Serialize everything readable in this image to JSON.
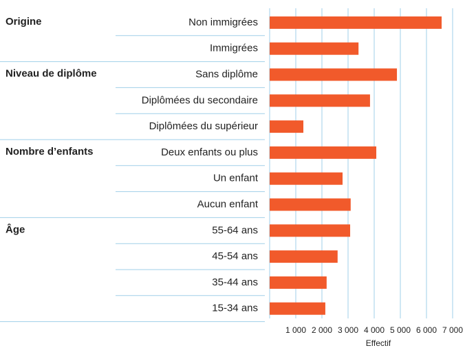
{
  "chart_data": {
    "type": "bar",
    "orientation": "horizontal",
    "color": "#f15a2b",
    "grid": true,
    "xlabel": "Effectif",
    "xlim": [
      0,
      7000
    ],
    "xticks": [
      {
        "value": 1000,
        "label": "1 000"
      },
      {
        "value": 2000,
        "label": "2 000"
      },
      {
        "value": 3000,
        "label": "3 000"
      },
      {
        "value": 4000,
        "label": "4 000"
      },
      {
        "value": 5000,
        "label": "5 000"
      },
      {
        "value": 6000,
        "label": "6 000"
      },
      {
        "value": 7000,
        "label": "7 000"
      }
    ],
    "groups": [
      {
        "name": "Origine",
        "categories": [
          "Non immigrées",
          "Immigrées"
        ],
        "values": [
          6580,
          3400
        ]
      },
      {
        "name": "Niveau de diplôme",
        "categories": [
          "Sans diplôme",
          "Diplômées du secondaire",
          "Diplômées du supérieur"
        ],
        "values": [
          4870,
          3840,
          1290
        ]
      },
      {
        "name": "Nombre d’enfants",
        "categories": [
          "Deux enfants ou plus",
          "Un enfant",
          "Aucun enfant"
        ],
        "values": [
          4080,
          2790,
          3100
        ]
      },
      {
        "name": "Âge",
        "categories": [
          "55-64 ans",
          "45-54 ans",
          "35-44 ans",
          "15-34 ans"
        ],
        "values": [
          3080,
          2600,
          2180,
          2130
        ]
      }
    ]
  }
}
